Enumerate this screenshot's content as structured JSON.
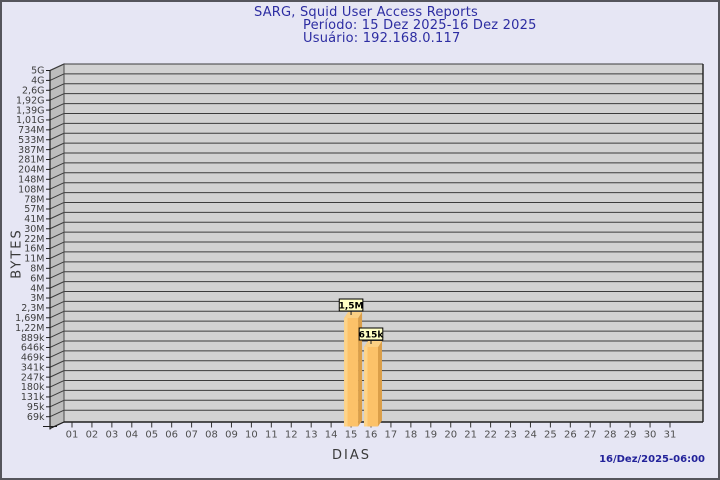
{
  "header": {
    "title": "SARG, Squid User Access Reports",
    "period": "Período: 15 Dez 2025-16 Dez 2025",
    "user": "Usuário: 192.168.0.117"
  },
  "footer": {
    "timestamp": "16/Dez/2025-06:00"
  },
  "chart_data": {
    "type": "bar",
    "title": "SARG, Squid User Access Reports",
    "xlabel": "DIAS",
    "ylabel": "BYTES",
    "scale": "logarithmic",
    "grid": true,
    "style": "3d-bars-on-gray-panel",
    "x_categories": [
      "01",
      "02",
      "03",
      "04",
      "05",
      "06",
      "07",
      "08",
      "09",
      "10",
      "11",
      "12",
      "13",
      "14",
      "15",
      "16",
      "17",
      "18",
      "19",
      "20",
      "21",
      "22",
      "23",
      "24",
      "25",
      "26",
      "27",
      "28",
      "29",
      "30",
      "31"
    ],
    "y_tick_labels": [
      "5G",
      "4G",
      "2,6G",
      "1,92G",
      "1,39G",
      "1,01G",
      "734M",
      "533M",
      "387M",
      "281M",
      "204M",
      "148M",
      "108M",
      "78M",
      "57M",
      "41M",
      "30M",
      "22M",
      "16M",
      "11M",
      "8M",
      "6M",
      "4M",
      "3M",
      "2,3M",
      "1,69M",
      "1,22M",
      "889k",
      "646k",
      "469k",
      "341k",
      "247k",
      "180k",
      "131k",
      "95k",
      "69k"
    ],
    "y_range": [
      "~50k",
      "5G"
    ],
    "values_bytes": [
      0,
      0,
      0,
      0,
      0,
      0,
      0,
      0,
      0,
      0,
      0,
      0,
      0,
      0,
      1500000,
      615000,
      0,
      0,
      0,
      0,
      0,
      0,
      0,
      0,
      0,
      0,
      0,
      0,
      0,
      0,
      0
    ],
    "bars": [
      {
        "day": "15",
        "value_label": "1,5M",
        "value_bytes": 1500000,
        "top_y": 316
      },
      {
        "day": "16",
        "value_label": "615k",
        "value_bytes": 615000,
        "top_y": 345
      }
    ],
    "colors": {
      "page_bg": "#E6E6F4",
      "plot_bg": "#D2D2D2",
      "wall_bg": "#BDBDBD",
      "grid": "#3C3C3C",
      "axis": "#1E1E1E",
      "tick_text": "#3E3E3E",
      "bar_main": "#FCC269",
      "bar_highlight": "#FDD48A",
      "bar_side": "#DB9F49",
      "bar_top": "#FBD084",
      "callout_bg": "#FFFFC5",
      "callout_border": "#000000",
      "title_text": "#2D2DA2"
    }
  }
}
